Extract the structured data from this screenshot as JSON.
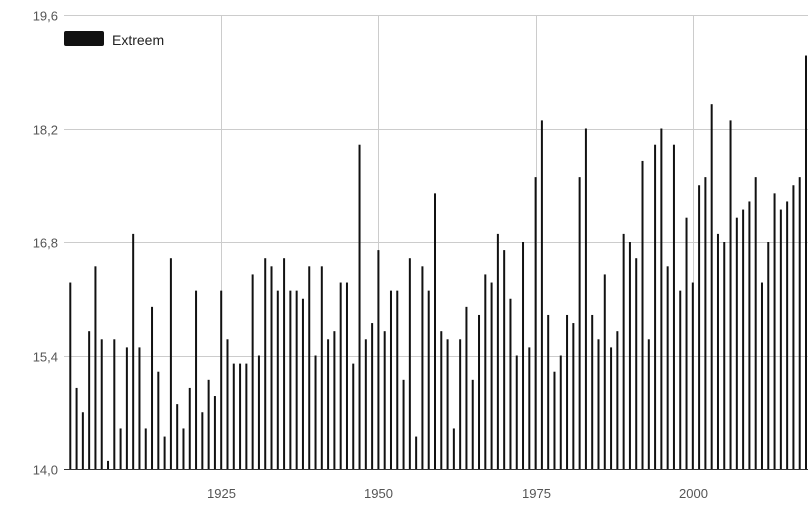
{
  "chart_data": {
    "type": "bar",
    "title": "",
    "xlabel": "",
    "ylabel": "",
    "ylim": [
      14.0,
      19.6
    ],
    "xlim": [
      1900,
      2018
    ],
    "y_ticks": [
      "14,0",
      "15,4",
      "16,8",
      "18,2",
      "19,6"
    ],
    "y_tick_values": [
      14.0,
      15.4,
      16.8,
      18.2,
      19.6
    ],
    "x_ticks": [
      "1925",
      "1950",
      "1975",
      "2000"
    ],
    "x_tick_values": [
      1925,
      1950,
      1975,
      2000
    ],
    "grid": true,
    "legend": {
      "position": "top-left",
      "entries": [
        {
          "name": "Extreem",
          "color": "#111111"
        }
      ]
    },
    "series": [
      {
        "name": "Extreem",
        "color": "#111111",
        "x": [
          1901,
          1902,
          1903,
          1904,
          1905,
          1906,
          1907,
          1908,
          1909,
          1910,
          1911,
          1912,
          1913,
          1914,
          1915,
          1916,
          1917,
          1918,
          1919,
          1920,
          1921,
          1922,
          1923,
          1924,
          1925,
          1926,
          1927,
          1928,
          1929,
          1930,
          1931,
          1932,
          1933,
          1934,
          1935,
          1936,
          1937,
          1938,
          1939,
          1940,
          1941,
          1942,
          1943,
          1944,
          1945,
          1946,
          1947,
          1948,
          1949,
          1950,
          1951,
          1952,
          1953,
          1954,
          1955,
          1956,
          1957,
          1958,
          1959,
          1960,
          1961,
          1962,
          1963,
          1964,
          1965,
          1966,
          1967,
          1968,
          1969,
          1970,
          1971,
          1972,
          1973,
          1974,
          1975,
          1976,
          1977,
          1978,
          1979,
          1980,
          1981,
          1982,
          1983,
          1984,
          1985,
          1986,
          1987,
          1988,
          1989,
          1990,
          1991,
          1992,
          1993,
          1994,
          1995,
          1996,
          1997,
          1998,
          1999,
          2000,
          2001,
          2002,
          2003,
          2004,
          2005,
          2006,
          2007,
          2008,
          2009,
          2010,
          2011,
          2012,
          2013,
          2014,
          2015,
          2016,
          2017,
          2018
        ],
        "values": [
          16.3,
          15.0,
          14.7,
          15.7,
          16.5,
          15.6,
          14.1,
          15.6,
          14.5,
          15.5,
          16.9,
          15.5,
          14.5,
          16.0,
          15.2,
          14.4,
          16.6,
          14.8,
          14.5,
          15.0,
          16.2,
          14.7,
          15.1,
          14.9,
          16.2,
          15.6,
          15.3,
          15.3,
          15.3,
          16.4,
          15.4,
          16.6,
          16.5,
          16.2,
          16.6,
          16.2,
          16.2,
          16.1,
          16.5,
          15.4,
          16.5,
          15.6,
          15.7,
          16.3,
          16.3,
          15.3,
          18.0,
          15.6,
          15.8,
          16.7,
          15.7,
          16.2,
          16.2,
          15.1,
          16.6,
          14.4,
          16.5,
          16.2,
          17.4,
          15.7,
          15.6,
          14.5,
          15.6,
          16.0,
          15.1,
          15.9,
          16.4,
          16.3,
          16.9,
          16.7,
          16.1,
          15.4,
          16.8,
          15.5,
          17.6,
          18.3,
          15.9,
          15.2,
          15.4,
          15.9,
          15.8,
          17.6,
          18.2,
          15.9,
          15.6,
          16.4,
          15.5,
          15.7,
          16.9,
          16.8,
          16.6,
          17.8,
          15.6,
          18.0,
          18.2,
          16.5,
          18.0,
          16.2,
          17.1,
          16.3,
          17.5,
          17.6,
          18.5,
          16.9,
          16.8,
          18.3,
          17.1,
          17.2,
          17.3,
          17.6,
          16.3,
          16.8,
          17.4,
          17.2,
          17.3,
          17.5,
          17.6,
          19.1
        ]
      }
    ]
  }
}
